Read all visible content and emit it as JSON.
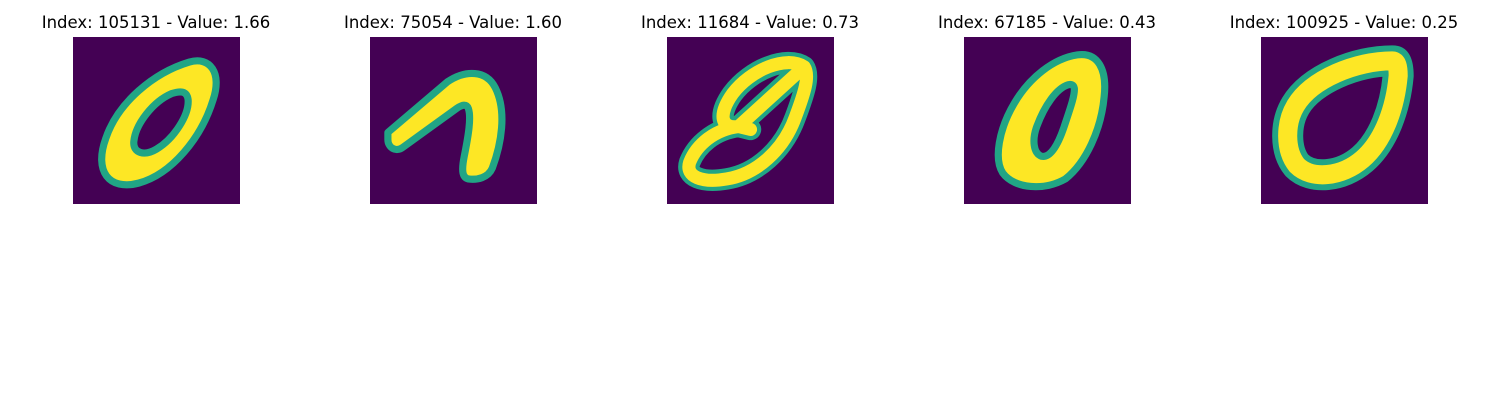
{
  "figure": {
    "panels": [
      {
        "title": "Index: 105131 - Value: 1.66",
        "colors": {
          "background": "#440154",
          "stroke": "#fde725",
          "edge": "#21a585"
        }
      },
      {
        "title": "Index: 75054 - Value: 1.60",
        "colors": {
          "background": "#440154",
          "stroke": "#fde725",
          "edge": "#21a585"
        }
      },
      {
        "title": "Index: 11684 - Value: 0.73",
        "colors": {
          "background": "#440154",
          "stroke": "#fde725",
          "edge": "#21a585"
        }
      },
      {
        "title": "Index: 67185 - Value: 0.43",
        "colors": {
          "background": "#440154",
          "stroke": "#fde725",
          "edge": "#21a585"
        }
      },
      {
        "title": "Index: 100925 - Value: 0.25",
        "colors": {
          "background": "#440154",
          "stroke": "#fde725",
          "edge": "#21a585"
        }
      }
    ]
  }
}
